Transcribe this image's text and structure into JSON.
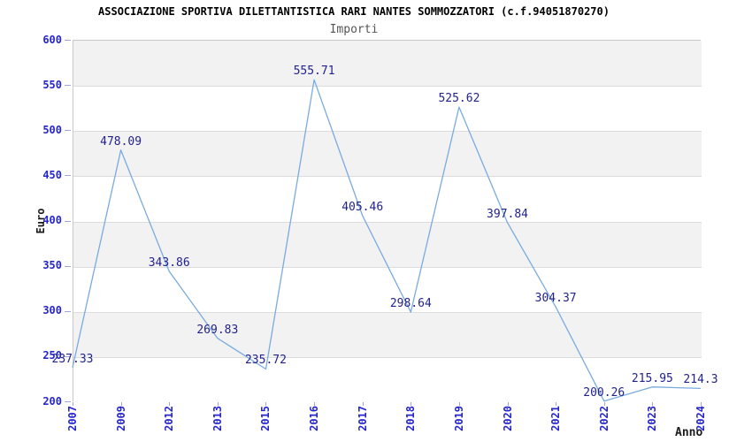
{
  "header": {
    "title": "ASSOCIAZIONE SPORTIVA DILETTANTISTICA RARI NANTES SOMMOZZATORI (c.f.94051870270)",
    "subtitle": "Importi"
  },
  "chart_data": {
    "type": "line",
    "title": "Importi",
    "xlabel": "Anno",
    "ylabel": "Euro",
    "categories": [
      "2007",
      "2009",
      "2012",
      "2013",
      "2015",
      "2016",
      "2017",
      "2018",
      "2019",
      "2020",
      "2021",
      "2022",
      "2023",
      "2024"
    ],
    "values": [
      237.33,
      478.09,
      343.86,
      269.83,
      235.72,
      555.71,
      405.46,
      298.64,
      525.62,
      397.84,
      304.37,
      200.26,
      215.95,
      214.3
    ],
    "value_labels": [
      "237.33",
      "478.09",
      "343.86",
      "269.83",
      "235.72",
      "555.71",
      "405.46",
      "298.64",
      "525.62",
      "397.84",
      "304.37",
      "200.26",
      "215.95",
      "214.3"
    ],
    "ylim": [
      200,
      600
    ],
    "yticks": [
      600,
      550,
      500,
      450,
      400,
      350,
      300,
      250,
      200
    ],
    "grid": "horizontal-bands-alternating",
    "legend_position": "none",
    "colors": {
      "line": "#79abdf",
      "value_label": "#22228c",
      "tick_label": "#2525cd",
      "band_gray": "#f2f2f2",
      "grid_line": "#dcdcdc",
      "plot_border": "#c9c9c9",
      "tick_mark": "#a5a5d5",
      "title": "#000000",
      "subtitle": "#555555",
      "axis_title": "#1a1a1a"
    }
  }
}
